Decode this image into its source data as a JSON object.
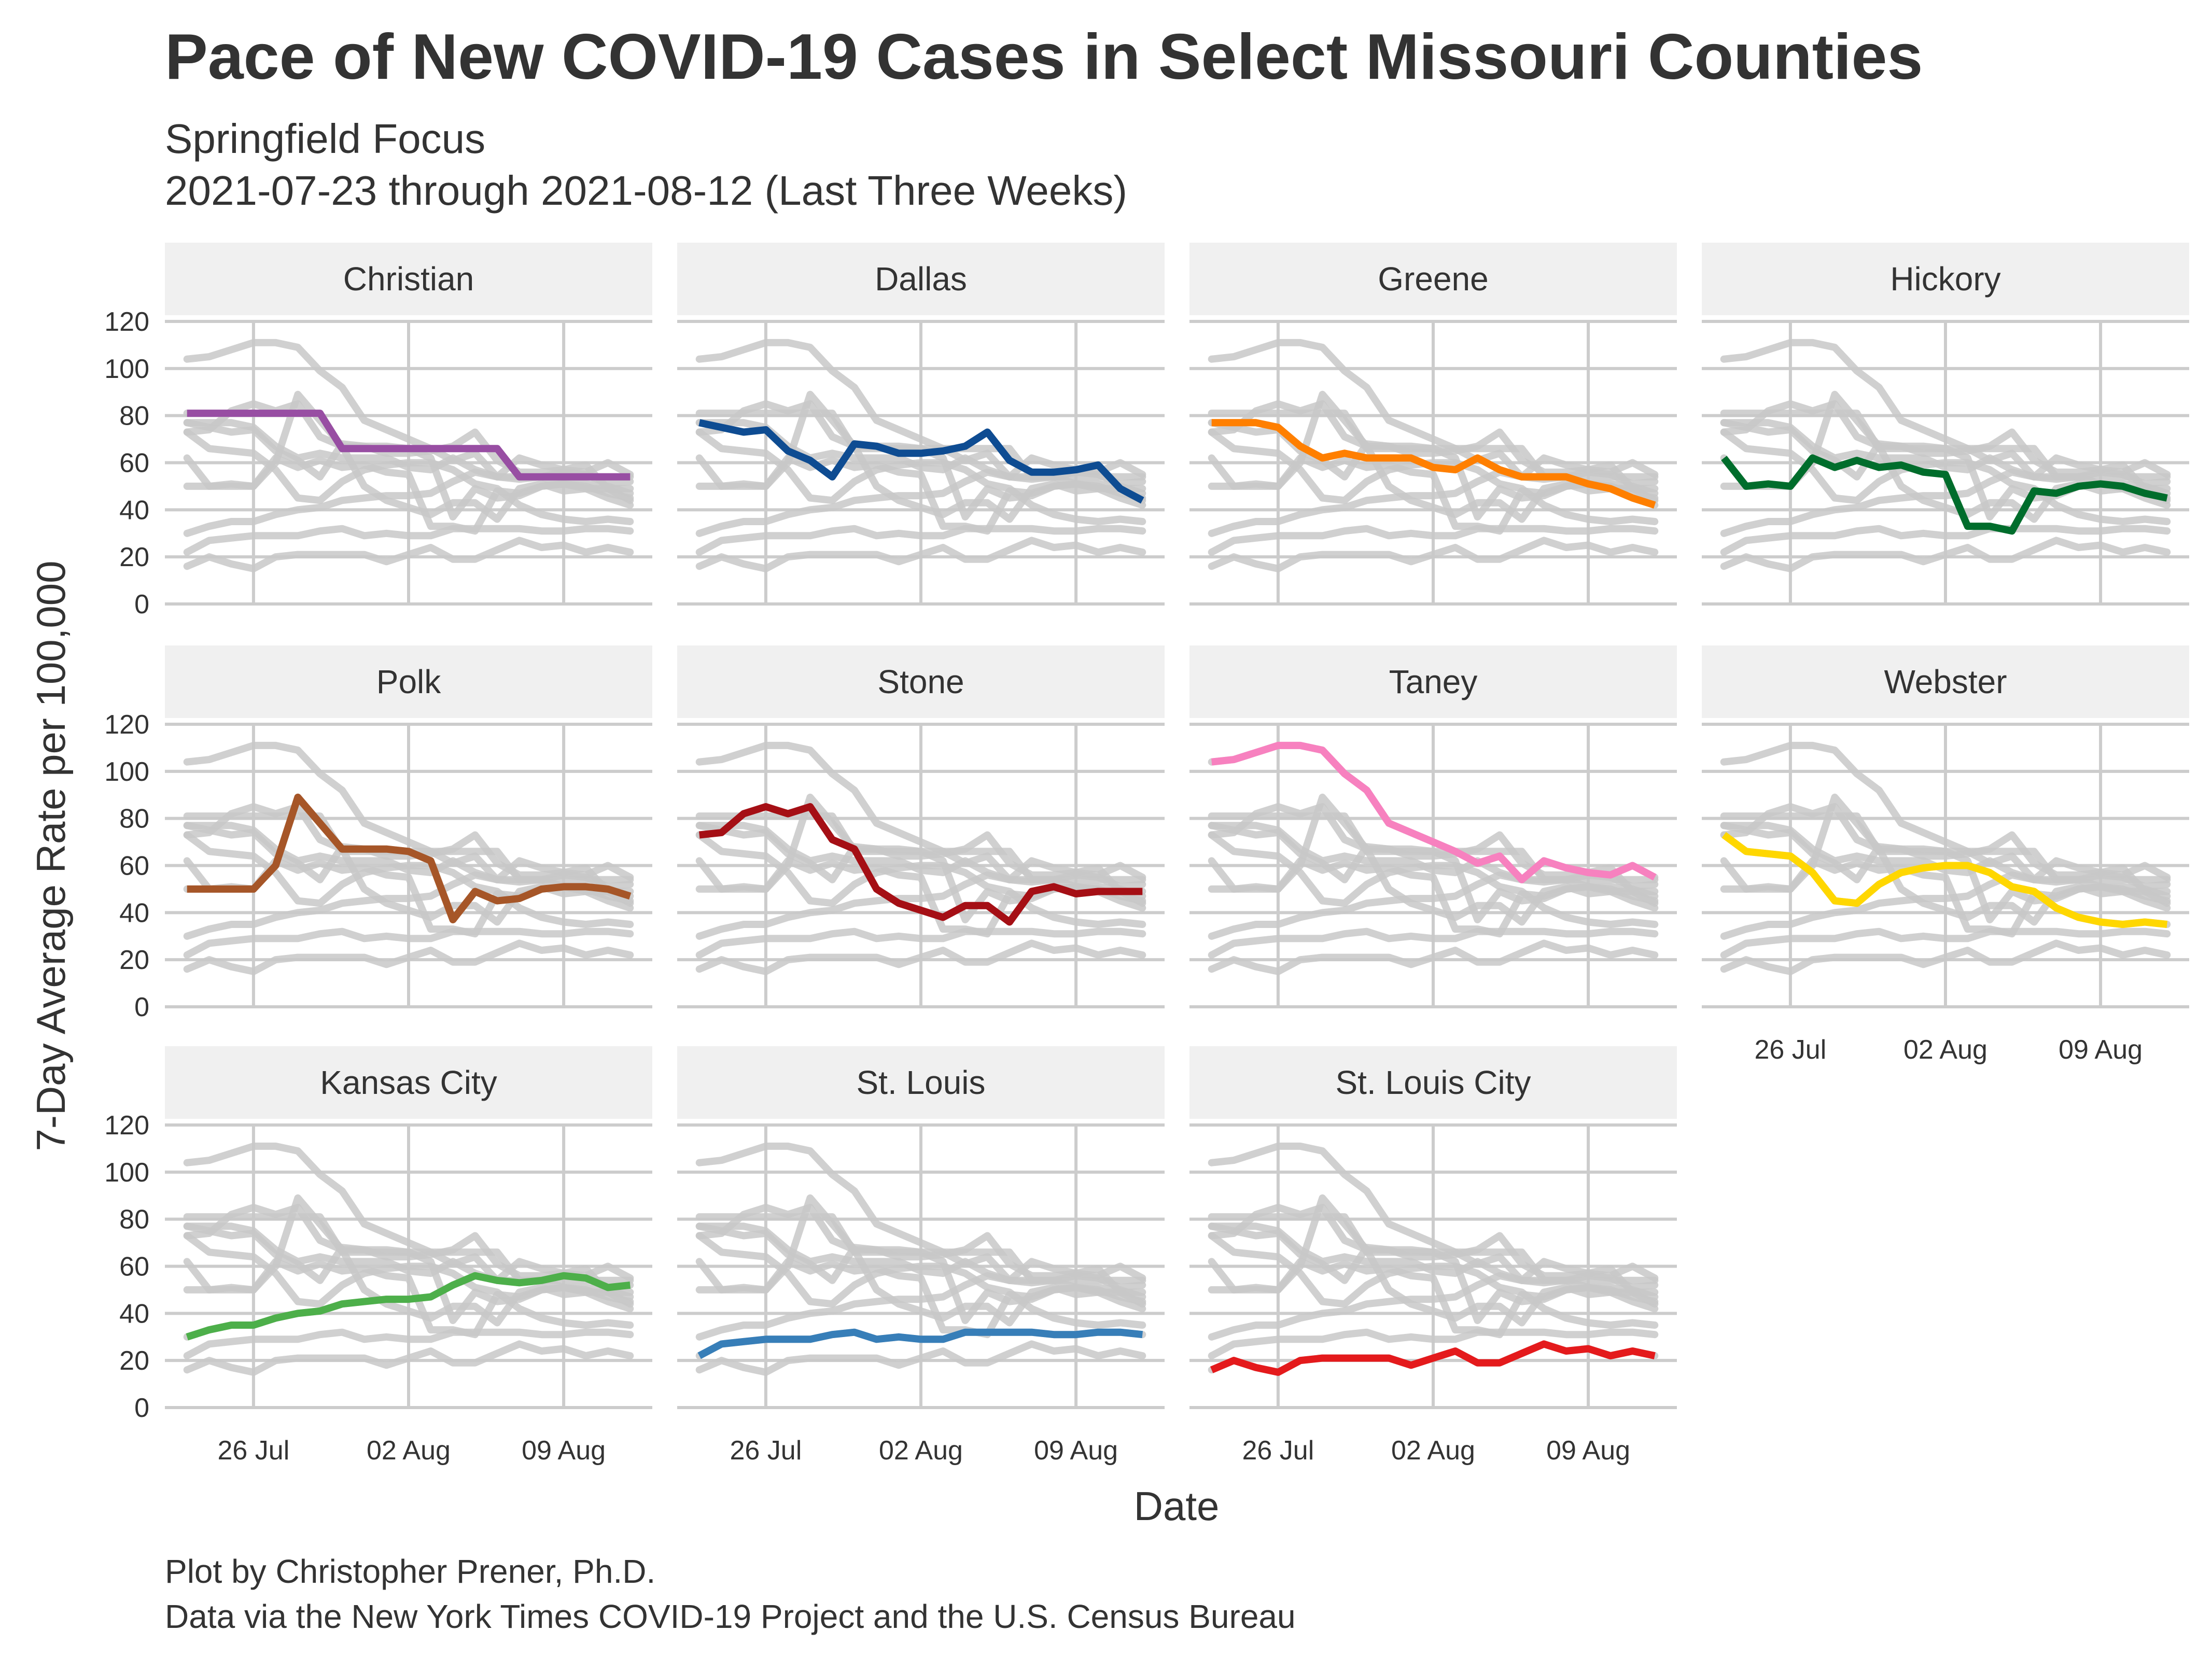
{
  "chart_data": {
    "type": "line",
    "title": "Pace of New COVID-19 Cases in Select Missouri Counties",
    "subtitle": [
      "Springfield Focus",
      "2021-07-23 through 2021-08-12 (Last Three Weeks)"
    ],
    "caption": [
      "Plot by Christopher Prener, Ph.D.",
      "Data via the New York Times COVID-19 Project and the U.S. Census Bureau"
    ],
    "xlabel": "Date",
    "ylabel": "7-Day Average Rate per 100,000",
    "ylim": [
      0,
      120
    ],
    "yticks": [
      0,
      20,
      40,
      60,
      80,
      100,
      120
    ],
    "xlim": [
      "2021-07-22",
      "2021-08-13"
    ],
    "xticks": [
      {
        "date": "2021-07-26",
        "label": "26 Jul"
      },
      {
        "date": "2021-08-02",
        "label": "02 Aug"
      },
      {
        "date": "2021-08-09",
        "label": "09 Aug"
      }
    ],
    "x": [
      "2021-07-23",
      "2021-07-24",
      "2021-07-25",
      "2021-07-26",
      "2021-07-27",
      "2021-07-28",
      "2021-07-29",
      "2021-07-30",
      "2021-07-31",
      "2021-08-01",
      "2021-08-02",
      "2021-08-03",
      "2021-08-04",
      "2021-08-05",
      "2021-08-06",
      "2021-08-07",
      "2021-08-08",
      "2021-08-09",
      "2021-08-10",
      "2021-08-11",
      "2021-08-12"
    ],
    "background_color": "#c8c8c8",
    "grid": true,
    "layout": "facet grid, 4 columns",
    "series": [
      {
        "name": "Christian",
        "color": "#984ea3",
        "values": [
          81,
          81,
          81,
          81,
          81,
          81,
          81,
          66,
          66,
          66,
          66,
          66,
          66,
          66,
          66,
          54,
          54,
          54,
          54,
          54,
          54
        ]
      },
      {
        "name": "Dallas",
        "color": "#0e4c92",
        "values": [
          77,
          75,
          73,
          74,
          65,
          61,
          54,
          68,
          67,
          64,
          64,
          65,
          67,
          73,
          61,
          56,
          56,
          57,
          59,
          49,
          44
        ]
      },
      {
        "name": "Greene",
        "color": "#ff7f00",
        "values": [
          77,
          77,
          77,
          75,
          67,
          62,
          64,
          62,
          62,
          62,
          58,
          57,
          62,
          57,
          54,
          54,
          54,
          51,
          49,
          45,
          42
        ]
      },
      {
        "name": "Hickory",
        "color": "#006d2c",
        "values": [
          62,
          50,
          51,
          50,
          62,
          58,
          61,
          58,
          59,
          56,
          55,
          33,
          33,
          31,
          48,
          47,
          50,
          51,
          50,
          47,
          45
        ]
      },
      {
        "name": "Polk",
        "color": "#a65628",
        "values": [
          50,
          50,
          50,
          50,
          60,
          89,
          78,
          67,
          67,
          67,
          66,
          62,
          37,
          49,
          45,
          46,
          50,
          51,
          51,
          50,
          47
        ]
      },
      {
        "name": "Stone",
        "color": "#a50f15",
        "values": [
          73,
          74,
          82,
          85,
          82,
          85,
          71,
          67,
          50,
          44,
          41,
          38,
          43,
          43,
          36,
          49,
          51,
          48,
          49,
          49,
          49
        ]
      },
      {
        "name": "Taney",
        "color": "#f781bf",
        "values": [
          104,
          105,
          108,
          111,
          111,
          109,
          99,
          92,
          78,
          74,
          70,
          66,
          61,
          64,
          54,
          62,
          59,
          57,
          56,
          60,
          55
        ]
      },
      {
        "name": "Webster",
        "color": "#ffd700",
        "values": [
          73,
          66,
          65,
          64,
          57,
          45,
          44,
          52,
          57,
          59,
          60,
          60,
          57,
          51,
          49,
          42,
          38,
          36,
          35,
          36,
          35
        ]
      },
      {
        "name": "Kansas City",
        "color": "#4daf4a",
        "values": [
          30,
          33,
          35,
          35,
          38,
          40,
          41,
          44,
          45,
          46,
          46,
          47,
          52,
          56,
          54,
          53,
          54,
          56,
          55,
          51,
          52
        ]
      },
      {
        "name": "St. Louis",
        "color": "#377eb8",
        "values": [
          22,
          27,
          28,
          29,
          29,
          29,
          31,
          32,
          29,
          30,
          29,
          29,
          32,
          32,
          32,
          32,
          31,
          31,
          32,
          32,
          31
        ]
      },
      {
        "name": "St. Louis City",
        "color": "#e41a1c",
        "values": [
          16,
          20,
          17,
          15,
          20,
          21,
          21,
          21,
          21,
          18,
          21,
          24,
          19,
          19,
          23,
          27,
          24,
          25,
          22,
          24,
          22
        ]
      }
    ]
  }
}
